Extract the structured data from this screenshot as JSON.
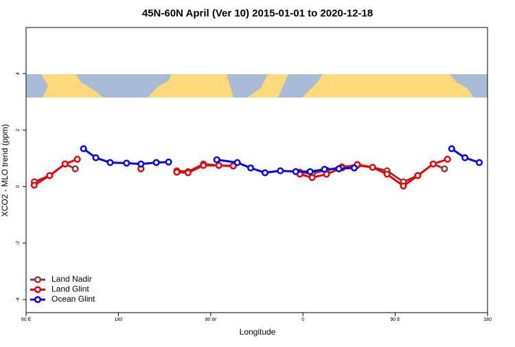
{
  "chart_data": {
    "type": "line",
    "title": "45N-60N April (Ver 10)   2015-01-01 to 2020-12-18",
    "xlabel": "Longitude",
    "ylabel": "XCO2 - MLO trend (ppm)",
    "xlim": [
      90,
      540
    ],
    "xticks": [
      {
        "value": 90,
        "label": "90 E"
      },
      180,
      {
        "value": 270,
        "label": "90 W"
      },
      {
        "value": 360,
        "label": "0"
      },
      {
        "value": 450,
        "label": "90 E"
      },
      {
        "value": 540,
        "label": "180"
      }
    ],
    "ylim": [
      -4.46,
      5.63
    ],
    "yticks": [
      -4,
      -2,
      0,
      2,
      4
    ],
    "legend": "bottom-left",
    "series": [
      {
        "name": "Land Nadir",
        "color": "#993333",
        "x": [
          98,
          113,
          128,
          138,
          null,
          237,
          248,
          263,
          278,
          292,
          null,
          357,
          369,
          383,
          398,
          413,
          428,
          442,
          458,
          472,
          487,
          498
        ],
        "values": [
          0.17,
          0.39,
          0.8,
          0.63,
          null,
          0.56,
          0.53,
          0.8,
          0.75,
          0.73,
          null,
          0.51,
          0.46,
          0.58,
          0.7,
          0.75,
          0.68,
          0.56,
          0.17,
          0.39,
          0.8,
          0.63
        ]
      },
      {
        "name": "Land Glint",
        "color": "#ee0000",
        "x": [
          98,
          113,
          128,
          140,
          null,
          202,
          null,
          237,
          248,
          263,
          278,
          292,
          null,
          357,
          369,
          383,
          398,
          413,
          428,
          442,
          458,
          472,
          487,
          501
        ],
        "values": [
          0.05,
          0.39,
          0.8,
          0.97,
          null,
          0.63,
          null,
          0.51,
          0.49,
          0.75,
          0.75,
          0.73,
          null,
          0.44,
          0.32,
          0.44,
          0.66,
          0.78,
          0.68,
          0.44,
          0.02,
          0.39,
          0.8,
          0.97
        ]
      },
      {
        "name": "Ocean Glint",
        "color": "#0000ee",
        "x": [
          146,
          158,
          172,
          188,
          202,
          217,
          229,
          null,
          276,
          296,
          309,
          323,
          338,
          353,
          367,
          381,
          395,
          410,
          null,
          505,
          518,
          532
        ],
        "values": [
          1.34,
          1.02,
          0.85,
          0.83,
          0.8,
          0.85,
          0.87,
          null,
          0.95,
          0.85,
          0.66,
          0.49,
          0.56,
          0.53,
          0.53,
          0.61,
          0.63,
          0.66,
          null,
          1.34,
          1.02,
          0.85
        ]
      }
    ]
  }
}
